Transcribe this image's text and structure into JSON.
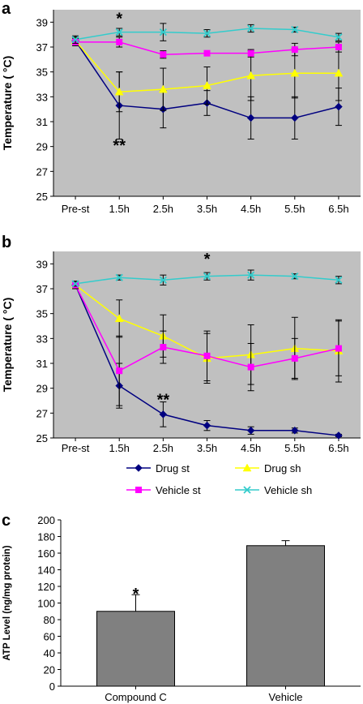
{
  "chart_data": [
    {
      "panel": "a",
      "type": "line",
      "ylabel": "Temperature ( °C)",
      "ylim": [
        25,
        40
      ],
      "yticks": [
        "25",
        "27",
        "29",
        "31",
        "33",
        "35",
        "37",
        "39"
      ],
      "categories": [
        "Pre-st",
        "1.5h",
        "2.5h",
        "3.5h",
        "4.5h",
        "5.5h",
        "6.5h"
      ],
      "background": "#c0c0c0",
      "grid": false,
      "series": [
        {
          "name": "Drug st",
          "color": "#000080",
          "marker": "diamond",
          "values": [
            37.5,
            32.3,
            32.0,
            32.5,
            31.3,
            31.3,
            32.2
          ],
          "errors": [
            0.3,
            2.7,
            1.5,
            1.0,
            1.7,
            1.7,
            1.5
          ]
        },
        {
          "name": "Drug sh",
          "color": "#ffff00",
          "marker": "triangle",
          "values": [
            37.5,
            33.4,
            33.6,
            33.9,
            34.7,
            34.9,
            34.9
          ],
          "errors": [
            0.3,
            1.6,
            1.7,
            1.5,
            2.0,
            2.0,
            2.2
          ]
        },
        {
          "name": "Vehicle st",
          "color": "#ff00ff",
          "marker": "square",
          "values": [
            37.4,
            37.4,
            36.4,
            36.5,
            36.5,
            36.8,
            37.0
          ],
          "errors": [
            0.3,
            0.4,
            0.3,
            0.2,
            0.3,
            0.5,
            0.4
          ]
        },
        {
          "name": "Vehicle sh",
          "color": "#33cccc",
          "marker": "x",
          "values": [
            37.6,
            38.2,
            38.2,
            38.1,
            38.5,
            38.4,
            37.8
          ],
          "errors": [
            0.3,
            0.3,
            0.7,
            0.3,
            0.3,
            0.2,
            0.3
          ]
        }
      ],
      "annotations": [
        {
          "text": "*",
          "x": "1.5h",
          "y": 39.5
        },
        {
          "text": "**",
          "x": "1.5h",
          "y": 29.3
        }
      ]
    },
    {
      "panel": "b",
      "type": "line",
      "ylabel": "Temperature ( °C)",
      "ylim": [
        25,
        40
      ],
      "yticks": [
        "25",
        "27",
        "29",
        "31",
        "33",
        "35",
        "37",
        "39"
      ],
      "categories": [
        "Pre-st",
        "1.5h",
        "2.5h",
        "3.5h",
        "4.5h",
        "5.5h",
        "6.5h"
      ],
      "background": "#c0c0c0",
      "grid": false,
      "series": [
        {
          "name": "Drug st",
          "color": "#000080",
          "marker": "diamond",
          "values": [
            37.3,
            29.2,
            26.9,
            26.0,
            25.6,
            25.6,
            25.2
          ],
          "errors": [
            0.3,
            1.8,
            1.0,
            0.4,
            0.3,
            0.2,
            0.1
          ]
        },
        {
          "name": "Drug sh",
          "color": "#ffff00",
          "marker": "triangle",
          "values": [
            37.3,
            34.6,
            33.2,
            31.4,
            31.7,
            32.2,
            32.0
          ],
          "errors": [
            0.3,
            1.5,
            1.7,
            2.0,
            2.4,
            2.5,
            2.5
          ]
        },
        {
          "name": "Vehicle st",
          "color": "#ff00ff",
          "marker": "square",
          "values": [
            37.3,
            30.4,
            32.3,
            31.6,
            30.7,
            31.4,
            32.2
          ],
          "errors": [
            0.3,
            2.8,
            1.3,
            2.0,
            1.9,
            1.6,
            2.2
          ]
        },
        {
          "name": "Vehicle sh",
          "color": "#33cccc",
          "marker": "x",
          "values": [
            37.4,
            37.9,
            37.7,
            38.0,
            38.1,
            38.0,
            37.7
          ],
          "errors": [
            0.2,
            0.2,
            0.4,
            0.3,
            0.4,
            0.2,
            0.3
          ]
        }
      ],
      "annotations": [
        {
          "text": "*",
          "x": "3.5h",
          "y": 39.6
        },
        {
          "text": "**",
          "x": "2.5h",
          "y": 28.3
        }
      ]
    },
    {
      "panel": "c",
      "type": "bar",
      "ylabel": "ATP Level (ng/mg protein)",
      "ylim": [
        0,
        200
      ],
      "yticks": [
        "0",
        "20",
        "40",
        "60",
        "80",
        "100",
        "120",
        "140",
        "160",
        "180",
        "200"
      ],
      "categories": [
        "Compound C",
        "Vehicle"
      ],
      "values": [
        90,
        169
      ],
      "errors": [
        20,
        6
      ],
      "bar_color": "#808080",
      "grid": false,
      "annotations": [
        {
          "text": "*",
          "x": "Compound C",
          "y": 114
        }
      ]
    }
  ],
  "legend": {
    "placement": "between panel b and panel c",
    "entries": [
      {
        "name": "Drug st",
        "color": "#000080",
        "marker": "diamond"
      },
      {
        "name": "Drug sh",
        "color": "#ffff00",
        "marker": "triangle"
      },
      {
        "name": "Vehicle st",
        "color": "#ff00ff",
        "marker": "square"
      },
      {
        "name": "Vehicle sh",
        "color": "#33cccc",
        "marker": "x"
      }
    ]
  }
}
